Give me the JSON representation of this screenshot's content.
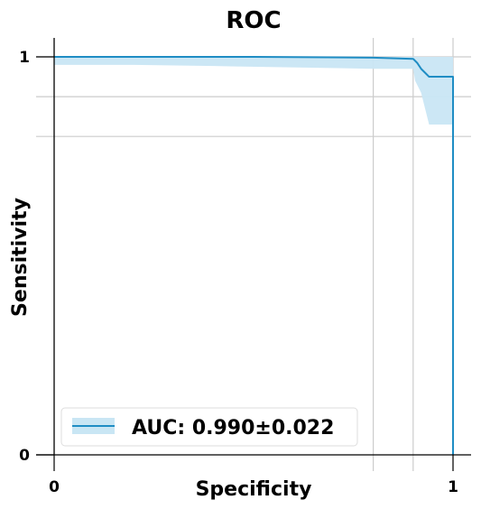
{
  "chart_data": {
    "type": "line",
    "title": "ROC",
    "xlabel": "Specificity",
    "ylabel": "Sensitivity",
    "xlim": [
      0,
      1
    ],
    "ylim": [
      0,
      1
    ],
    "x_tick_labels": [
      "0",
      "1"
    ],
    "y_tick_labels": [
      "0",
      "1"
    ],
    "grid": true,
    "vertical_gridlines_x": [
      0.8,
      0.9,
      1.0
    ],
    "horizontal_gridlines_y": [
      1.0,
      0.9,
      0.8
    ],
    "legend_placement": "lower-left",
    "series": [
      {
        "name": "AUC: 0.990±0.022",
        "color": "#1f8dc4",
        "band_color": "#c9e6f4",
        "points": [
          [
            0,
            1.0
          ],
          [
            0.5,
            1.0
          ],
          [
            0.8,
            0.998
          ],
          [
            0.9,
            0.995
          ],
          [
            0.91,
            0.985
          ],
          [
            0.92,
            0.97
          ],
          [
            0.93,
            0.96
          ],
          [
            0.94,
            0.95
          ],
          [
            1.0,
            0.95
          ],
          [
            1.0,
            0.0
          ]
        ],
        "upper": [
          [
            0,
            1.0
          ],
          [
            0.9,
            1.0
          ],
          [
            0.91,
            1.0
          ],
          [
            1.0,
            1.0
          ]
        ],
        "lower": [
          [
            0,
            0.98
          ],
          [
            0.2,
            0.98
          ],
          [
            0.4,
            0.977
          ],
          [
            0.8,
            0.97
          ],
          [
            0.9,
            0.97
          ],
          [
            0.905,
            0.94
          ],
          [
            0.92,
            0.91
          ],
          [
            0.93,
            0.87
          ],
          [
            0.94,
            0.83
          ],
          [
            1.0,
            0.83
          ]
        ]
      }
    ]
  }
}
